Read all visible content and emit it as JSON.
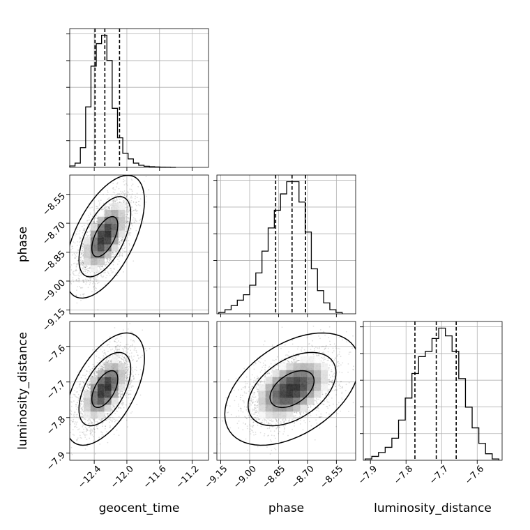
{
  "chart_data": {
    "type": "corner",
    "parameters": [
      "geocent_time",
      "phase",
      "luminosity_distance"
    ],
    "grid": true,
    "axes": {
      "geocent_time": {
        "range": [
          -12.7,
          -11.0
        ],
        "ticks": [
          -12.4,
          -12.0,
          -11.6,
          -11.2
        ],
        "tick_labels": [
          "−12.4",
          "−12.0",
          "−11.6",
          "−11.2"
        ]
      },
      "phase": {
        "range": [
          -9.17,
          -8.45
        ],
        "ticks": [
          -9.15,
          -9.0,
          -8.85,
          -8.7,
          -8.55
        ],
        "tick_labels": [
          "−9.15",
          "−9.00",
          "−8.85",
          "−8.70",
          "−8.55"
        ]
      },
      "luminosity_distance": {
        "range": [
          -7.92,
          -7.53
        ],
        "ticks": [
          -7.9,
          -7.8,
          -7.7,
          -7.6
        ],
        "tick_labels": [
          "−7.9",
          "−7.8",
          "−7.7",
          "−7.6"
        ]
      }
    },
    "histograms": {
      "geocent_time": {
        "bin_edges": [
          -12.7,
          -12.635,
          -12.57,
          -12.505,
          -12.44,
          -12.375,
          -12.31,
          -12.245,
          -12.18,
          -12.115,
          -12.05,
          -11.985,
          -11.92,
          -11.855,
          -11.79,
          -11.725,
          -11.66,
          -11.595,
          -11.53,
          -11.465,
          -11.4
        ],
        "counts": [
          1,
          3,
          14,
          43,
          72,
          88,
          94,
          76,
          42,
          21,
          10,
          6,
          3,
          1.5,
          0.8,
          0.5,
          0.3,
          0.2,
          0.1,
          0
        ],
        "quantiles": [
          -12.39,
          -12.27,
          -12.09
        ]
      },
      "phase": {
        "bin_edges": [
          -9.16,
          -9.128,
          -9.096,
          -9.064,
          -9.032,
          -9.0,
          -8.968,
          -8.936,
          -8.904,
          -8.872,
          -8.84,
          -8.808,
          -8.776,
          -8.744,
          -8.712,
          -8.68,
          -8.648,
          -8.616,
          -8.584,
          -8.552,
          -8.52
        ],
        "counts": [
          1,
          3,
          6,
          10,
          14,
          21,
          30,
          46,
          63,
          76,
          88,
          97,
          97,
          82,
          60,
          33,
          17,
          8,
          3,
          1
        ],
        "quantiles": [
          -8.865,
          -8.78,
          -8.71
        ]
      },
      "luminosity_distance": {
        "bin_edges": [
          -7.915,
          -7.8962,
          -7.8774,
          -7.8586,
          -7.8398,
          -7.821,
          -7.8022,
          -7.7834,
          -7.7646,
          -7.7458,
          -7.727,
          -7.7082,
          -7.6894,
          -7.6706,
          -7.6518,
          -7.633,
          -7.6142,
          -7.5954,
          -7.5766,
          -7.5578,
          -7.539
        ],
        "counts": [
          1,
          3,
          6,
          10,
          17,
          31,
          48,
          67,
          80,
          84,
          94,
          102,
          96,
          84,
          63,
          41,
          25,
          13,
          5,
          1
        ],
        "quantiles": [
          -7.775,
          -7.715,
          -7.659
        ]
      }
    },
    "pairs": [
      {
        "x": "geocent_time",
        "y": "phase",
        "mean": [
          -12.27,
          -8.77
        ],
        "sd": [
          0.16,
          0.105
        ],
        "rho": 0.58,
        "levels": [
          0.39,
          0.86,
          0.99
        ]
      },
      {
        "x": "geocent_time",
        "y": "luminosity_distance",
        "mean": [
          -12.27,
          -7.72
        ],
        "sd": [
          0.16,
          0.052
        ],
        "rho": 0.55,
        "levels": [
          0.39,
          0.86,
          0.99
        ]
      },
      {
        "x": "phase",
        "y": "luminosity_distance",
        "mean": [
          -8.78,
          -7.72
        ],
        "sd": [
          0.115,
          0.052
        ],
        "rho": 0.45,
        "levels": [
          0.39,
          0.86,
          0.99
        ]
      }
    ]
  }
}
